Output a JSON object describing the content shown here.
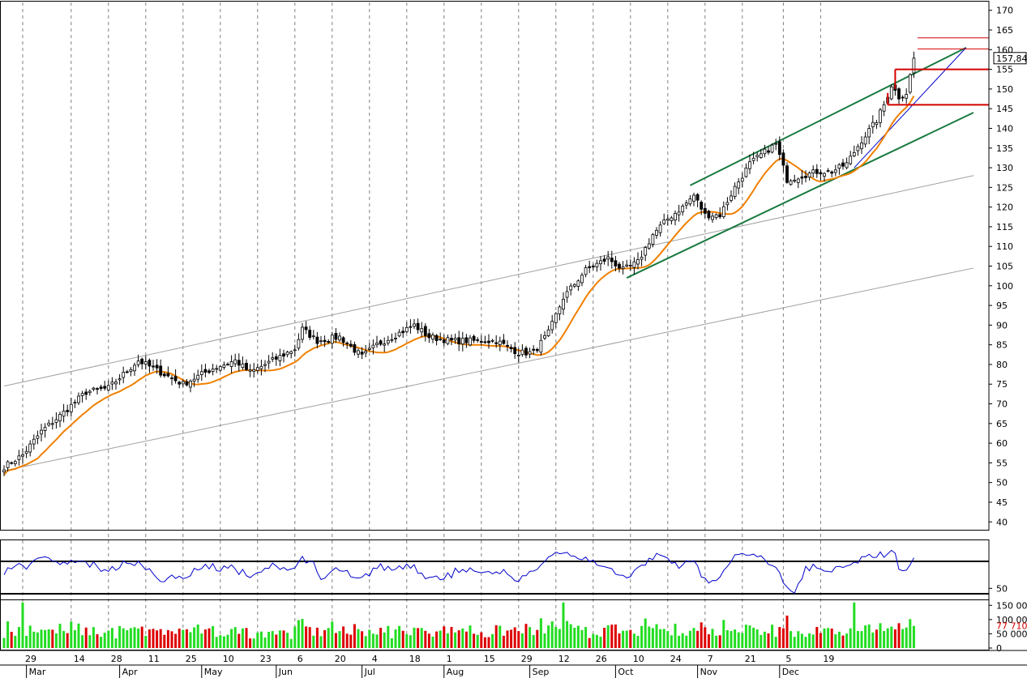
{
  "chart_data": [
    {
      "panel": "price",
      "type": "candlestick",
      "title": "",
      "ylim": [
        38,
        172
      ],
      "y_ticks": [
        40,
        45,
        50,
        55,
        60,
        65,
        70,
        75,
        80,
        85,
        90,
        95,
        100,
        105,
        110,
        115,
        120,
        125,
        130,
        135,
        140,
        145,
        150,
        155,
        160,
        165,
        170
      ],
      "last_value_label": "157,84",
      "anchors": [
        {
          "i": 0,
          "v": 54
        },
        {
          "i": 5,
          "v": 57
        },
        {
          "i": 10,
          "v": 63
        },
        {
          "i": 15,
          "v": 67
        },
        {
          "i": 22,
          "v": 73
        },
        {
          "i": 28,
          "v": 74
        },
        {
          "i": 36,
          "v": 81
        },
        {
          "i": 42,
          "v": 78
        },
        {
          "i": 48,
          "v": 75
        },
        {
          "i": 56,
          "v": 79
        },
        {
          "i": 62,
          "v": 81
        },
        {
          "i": 66,
          "v": 78
        },
        {
          "i": 72,
          "v": 81
        },
        {
          "i": 78,
          "v": 84
        },
        {
          "i": 80,
          "v": 89
        },
        {
          "i": 84,
          "v": 86
        },
        {
          "i": 90,
          "v": 87
        },
        {
          "i": 96,
          "v": 82
        },
        {
          "i": 100,
          "v": 85
        },
        {
          "i": 106,
          "v": 88
        },
        {
          "i": 110,
          "v": 90
        },
        {
          "i": 114,
          "v": 87
        },
        {
          "i": 120,
          "v": 86
        },
        {
          "i": 126,
          "v": 86
        },
        {
          "i": 132,
          "v": 86
        },
        {
          "i": 138,
          "v": 83
        },
        {
          "i": 142,
          "v": 83
        },
        {
          "i": 146,
          "v": 88
        },
        {
          "i": 150,
          "v": 97
        },
        {
          "i": 156,
          "v": 104
        },
        {
          "i": 162,
          "v": 107
        },
        {
          "i": 166,
          "v": 104
        },
        {
          "i": 170,
          "v": 106
        },
        {
          "i": 174,
          "v": 113
        },
        {
          "i": 178,
          "v": 117
        },
        {
          "i": 182,
          "v": 120
        },
        {
          "i": 185,
          "v": 123
        },
        {
          "i": 188,
          "v": 118
        },
        {
          "i": 192,
          "v": 118
        },
        {
          "i": 196,
          "v": 125
        },
        {
          "i": 200,
          "v": 131
        },
        {
          "i": 204,
          "v": 134
        },
        {
          "i": 207,
          "v": 136
        },
        {
          "i": 210,
          "v": 127
        },
        {
          "i": 214,
          "v": 128
        },
        {
          "i": 218,
          "v": 129
        },
        {
          "i": 222,
          "v": 129
        },
        {
          "i": 226,
          "v": 131
        },
        {
          "i": 230,
          "v": 137
        },
        {
          "i": 234,
          "v": 142
        },
        {
          "i": 236,
          "v": 146
        },
        {
          "i": 238,
          "v": 151
        },
        {
          "i": 240,
          "v": 148
        },
        {
          "i": 242,
          "v": 149
        },
        {
          "i": 244,
          "v": 157.84
        }
      ],
      "bars": 245,
      "series": [
        {
          "name": "",
          "kind": "moving-average",
          "color": "#f08000"
        }
      ],
      "trendlines": [
        {
          "color": "#a0a0a0",
          "from": {
            "i": 0,
            "v": 74.5
          },
          "to": {
            "i": 260,
            "v": 128
          }
        },
        {
          "color": "#a0a0a0",
          "from": {
            "i": 0,
            "v": 53
          },
          "to": {
            "i": 260,
            "v": 104.5
          }
        },
        {
          "color": "#1a7a40",
          "from": {
            "i": 184,
            "v": 125.5
          },
          "to": {
            "i": 258,
            "v": 160.5
          }
        },
        {
          "color": "#1a7a40",
          "from": {
            "i": 167,
            "v": 102
          },
          "to": {
            "i": 260,
            "v": 144
          }
        },
        {
          "color": "#0000cc",
          "from": {
            "i": 228,
            "v": 130
          },
          "to": {
            "i": 258,
            "v": 160.5
          }
        }
      ],
      "horizontal_levels": [
        {
          "color": "#d40000",
          "v": 163,
          "from_i": 245,
          "to_i": 260,
          "width": 1
        },
        {
          "color": "#d40000",
          "v": 160.2,
          "from_i": 245,
          "to_i": 260,
          "width": 1
        },
        {
          "color": "#d40000",
          "v": 155,
          "from_i": 239,
          "to_i": 260,
          "width": 2
        },
        {
          "color": "#d40000",
          "v": 146,
          "from_i": 237,
          "to_i": 260,
          "width": 2
        }
      ]
    },
    {
      "panel": "oscillator",
      "type": "line",
      "ylim": [
        43,
        85
      ],
      "y_ticks": [
        50
      ],
      "levels": [
        70,
        46
      ],
      "color": "#0000cc"
    },
    {
      "panel": "volume",
      "type": "bar",
      "ylim": [
        0,
        165
      ],
      "y_ticks": [
        "150 00",
        "100 00",
        "50 000",
        "0"
      ],
      "y_tick_values": [
        150,
        100,
        50,
        0
      ],
      "last_value_label": "77 710",
      "last_value": 77.71,
      "colors": {
        "up": "#22dd22",
        "down": "#dd0000"
      }
    }
  ],
  "x_axis": {
    "days": [
      {
        "i": 5,
        "label": "29"
      },
      {
        "i": 18,
        "label": "14"
      },
      {
        "i": 28,
        "label": "28"
      },
      {
        "i": 38,
        "label": "11"
      },
      {
        "i": 48,
        "label": "25"
      },
      {
        "i": 58,
        "label": "10"
      },
      {
        "i": 68,
        "label": "23"
      },
      {
        "i": 78,
        "label": "6"
      },
      {
        "i": 88,
        "label": "20"
      },
      {
        "i": 98,
        "label": "4"
      },
      {
        "i": 108,
        "label": "18"
      },
      {
        "i": 118,
        "label": "1"
      },
      {
        "i": 128,
        "label": "15"
      },
      {
        "i": 138,
        "label": "29"
      },
      {
        "i": 148,
        "label": "12"
      },
      {
        "i": 158,
        "label": "26"
      },
      {
        "i": 168,
        "label": "10"
      },
      {
        "i": 178,
        "label": "24"
      },
      {
        "i": 188,
        "label": "7"
      },
      {
        "i": 198,
        "label": "21"
      },
      {
        "i": 209,
        "label": "5"
      },
      {
        "i": 219,
        "label": "19"
      }
    ],
    "months": [
      {
        "i": 6,
        "label": "Mar"
      },
      {
        "i": 31,
        "label": "Apr"
      },
      {
        "i": 53,
        "label": "May"
      },
      {
        "i": 73,
        "label": "Jun"
      },
      {
        "i": 96,
        "label": "Jul"
      },
      {
        "i": 118,
        "label": "Aug"
      },
      {
        "i": 141,
        "label": "Sep"
      },
      {
        "i": 164,
        "label": "Oct"
      },
      {
        "i": 186,
        "label": "Nov"
      },
      {
        "i": 208,
        "label": "Dec"
      }
    ]
  }
}
